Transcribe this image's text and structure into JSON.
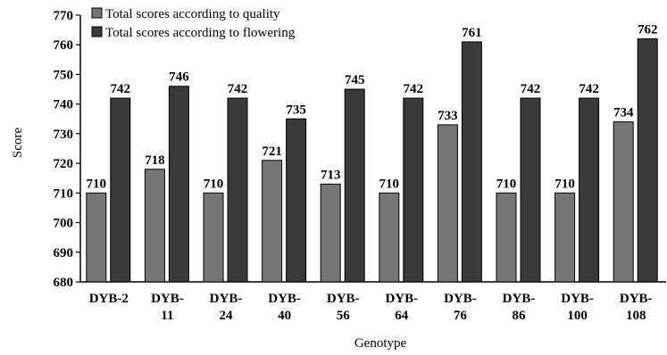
{
  "chart_data": {
    "type": "bar",
    "title": "",
    "xlabel": "Genotype",
    "ylabel": "Score",
    "ylim": [
      680,
      770
    ],
    "yticks": [
      680,
      690,
      700,
      710,
      720,
      730,
      740,
      750,
      760,
      770
    ],
    "categories": [
      [
        "DYB-2"
      ],
      [
        "DYB-",
        "11"
      ],
      [
        "DYB-",
        "24"
      ],
      [
        "DYB-",
        "40"
      ],
      [
        "DYB-",
        "56"
      ],
      [
        "DYB-",
        "64"
      ],
      [
        "DYB-",
        "76"
      ],
      [
        "DYB-",
        "86"
      ],
      [
        "DYB-",
        "100"
      ],
      [
        "DYB-",
        "108"
      ]
    ],
    "series": [
      {
        "name": "Total scores according to quality",
        "color": "#767676",
        "values": [
          710,
          718,
          710,
          721,
          713,
          710,
          733,
          710,
          710,
          734
        ]
      },
      {
        "name": "Total scores according to flowering",
        "color": "#3a3a3a",
        "values": [
          742,
          746,
          742,
          735,
          745,
          742,
          761,
          742,
          742,
          762
        ]
      }
    ],
    "grid": false,
    "legend_position": "top-left"
  }
}
